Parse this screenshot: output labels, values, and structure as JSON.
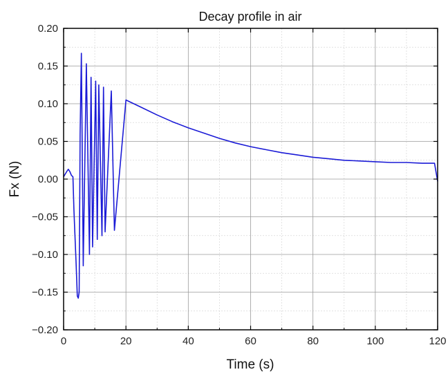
{
  "chart_data": {
    "type": "line",
    "title": "Decay profile in air",
    "xlabel": "Time (s)",
    "ylabel": "Fx (N)",
    "xlim": [
      0,
      120
    ],
    "ylim": [
      -0.2,
      0.2
    ],
    "x_ticks": [
      0,
      20,
      40,
      60,
      80,
      100,
      120
    ],
    "x_tick_labels": [
      "0",
      "20",
      "40",
      "60",
      "80",
      "100",
      "120"
    ],
    "y_ticks": [
      -0.2,
      -0.15,
      -0.1,
      -0.05,
      0,
      0.05,
      0.1,
      0.15,
      0.2
    ],
    "y_tick_labels": [
      "−0.20",
      "−0.15",
      "−0.10",
      "−0.05",
      "0.00",
      "0.05",
      "0.10",
      "0.15",
      "0.20"
    ],
    "grid": true,
    "minor_grid": true,
    "legend": "none",
    "series_color": "#1a1ad6",
    "series": [
      {
        "x": [
          0,
          1,
          1.5,
          2,
          2.5,
          3,
          3.3,
          3.6,
          4,
          4.4,
          4.7,
          5,
          5.3,
          5.7,
          6.3,
          7.3,
          8.3,
          8.8,
          9.3,
          10.3,
          10.8,
          11.3,
          12.3,
          12.8,
          13.3,
          15.3,
          16.3,
          20,
          25,
          30,
          35,
          40,
          45,
          50,
          55,
          60,
          65,
          70,
          75,
          80,
          85,
          90,
          95,
          100,
          105,
          110,
          115,
          119,
          120
        ],
        "y": [
          0.003,
          0.01,
          0.013,
          0.01,
          0.005,
          0.003,
          -0.04,
          -0.07,
          -0.11,
          -0.155,
          -0.158,
          -0.15,
          0.06,
          0.167,
          -0.115,
          0.153,
          -0.1,
          0.135,
          -0.09,
          0.13,
          -0.08,
          0.125,
          -0.075,
          0.122,
          -0.07,
          0.117,
          -0.068,
          0.105,
          0.095,
          0.085,
          0.076,
          0.068,
          0.061,
          0.054,
          0.048,
          0.043,
          0.039,
          0.035,
          0.032,
          0.029,
          0.027,
          0.025,
          0.024,
          0.023,
          0.022,
          0.022,
          0.021,
          0.021,
          -0.003
        ]
      }
    ]
  }
}
